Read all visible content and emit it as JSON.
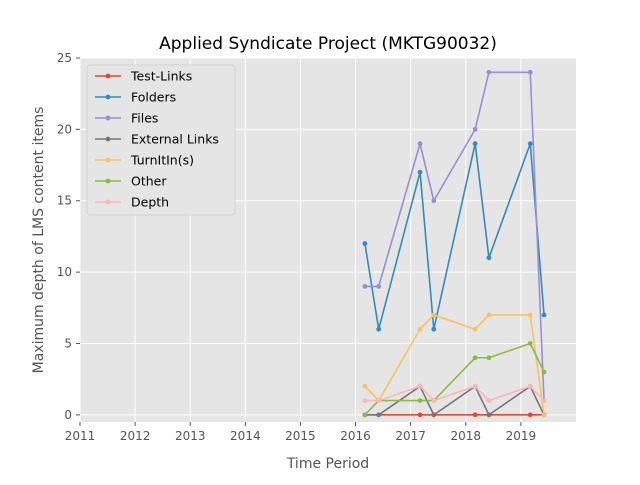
{
  "chart_data": {
    "type": "line",
    "title": "Applied Syndicate Project (MKTG90032)",
    "xlabel": "Time Period",
    "ylabel": "Maximum depth of LMS content items",
    "xlim": [
      2011.0,
      2020.0
    ],
    "ylim": [
      -0.5,
      25
    ],
    "x_ticks": [
      "2011",
      "2012",
      "2013",
      "2014",
      "2015",
      "2016",
      "2017",
      "2018",
      "2019"
    ],
    "y_ticks": [
      0,
      5,
      10,
      15,
      20,
      25
    ],
    "grid": true,
    "legend_position": "top-left",
    "x": [
      2016.17,
      2016.42,
      2017.17,
      2017.42,
      2018.17,
      2018.42,
      2019.17,
      2019.42
    ],
    "series": [
      {
        "name": "Test-Links",
        "color": "#e24a33",
        "values": [
          0,
          0,
          0,
          0,
          0,
          0,
          0,
          0
        ]
      },
      {
        "name": "Folders",
        "color": "#348abd",
        "values": [
          12,
          6,
          17,
          6,
          19,
          11,
          19,
          7
        ]
      },
      {
        "name": "Files",
        "color": "#988ed5",
        "values": [
          9,
          9,
          19,
          15,
          20,
          24,
          24,
          1
        ]
      },
      {
        "name": "External Links",
        "color": "#777777",
        "values": [
          0,
          0,
          2,
          0,
          2,
          0,
          2,
          0
        ]
      },
      {
        "name": "TurnItIn(s)",
        "color": "#fbc15e",
        "values": [
          2,
          1,
          6,
          7,
          6,
          7,
          7,
          0
        ]
      },
      {
        "name": "Other",
        "color": "#8eba42",
        "values": [
          0,
          1,
          1,
          1,
          4,
          4,
          5,
          3
        ]
      },
      {
        "name": "Depth",
        "color": "#ffb5b8",
        "values": [
          1,
          1,
          2,
          1,
          2,
          1,
          2,
          1
        ]
      }
    ]
  }
}
